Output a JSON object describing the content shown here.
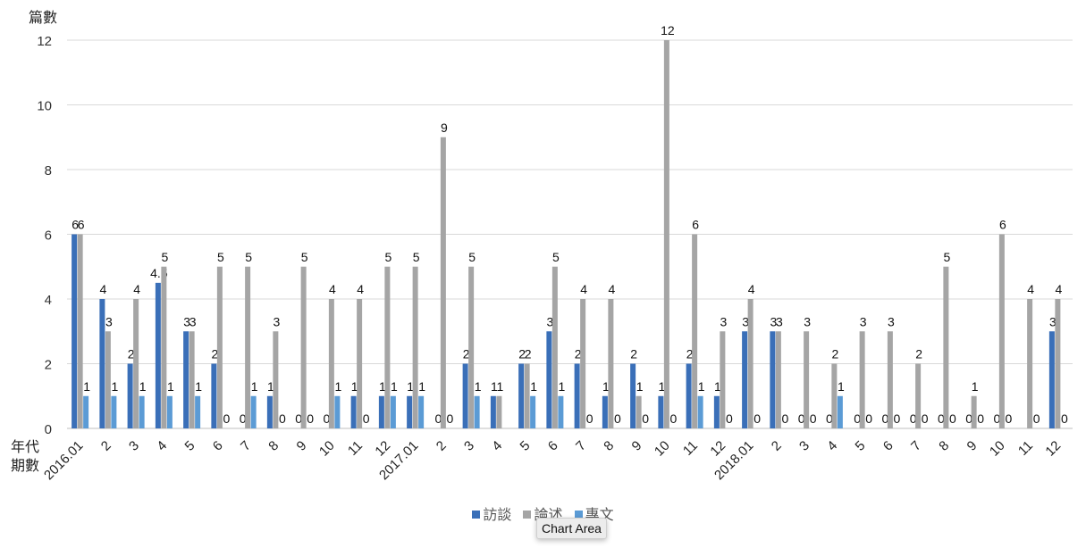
{
  "chart_data": {
    "type": "bar",
    "title": "",
    "ylabel": "篇數",
    "xlabel": "年代\n期數",
    "ylim": [
      0,
      12
    ],
    "yticks": [
      0,
      2,
      4,
      6,
      8,
      10,
      12
    ],
    "grid": true,
    "legend_position": "bottom",
    "categories": [
      "2016.01",
      "2",
      "3",
      "4",
      "5",
      "6",
      "7",
      "8",
      "9",
      "10",
      "11",
      "12",
      "2017.01",
      "2",
      "3",
      "4",
      "5",
      "6",
      "7",
      "8",
      "9",
      "10",
      "11",
      "12",
      "2018.01",
      "2",
      "3",
      "4",
      "5",
      "6",
      "7",
      "8",
      "9",
      "10",
      "11",
      "12"
    ],
    "series": [
      {
        "name": "訪談",
        "color": "#3a6fb8",
        "values": [
          6,
          4,
          2,
          4.5,
          3,
          2,
          0,
          1,
          0,
          0,
          1,
          1,
          1,
          0,
          2,
          1,
          2,
          3,
          2,
          1,
          2,
          1,
          2,
          1,
          3,
          3,
          0,
          0,
          0,
          0,
          0,
          0,
          0,
          0,
          null,
          3
        ]
      },
      {
        "name": "論述",
        "color": "#a5a5a5",
        "values": [
          6,
          3,
          4,
          5,
          3,
          5,
          5,
          3,
          5,
          4,
          4,
          5,
          5,
          9,
          5,
          1,
          2,
          5,
          4,
          4,
          1,
          12,
          6,
          3,
          4,
          3,
          3,
          2,
          3,
          3,
          2,
          5,
          1,
          6,
          4,
          4
        ]
      },
      {
        "name": "專文",
        "color": "#5b9bd5",
        "values": [
          1,
          1,
          1,
          1,
          1,
          0,
          1,
          0,
          0,
          1,
          0,
          1,
          1,
          0,
          1,
          null,
          1,
          1,
          0,
          0,
          0,
          0,
          1,
          0,
          0,
          0,
          0,
          1,
          0,
          0,
          0,
          0,
          0,
          0,
          0,
          0
        ]
      }
    ]
  },
  "axis": {
    "y_title": "篇數",
    "x_title_line1": "年代",
    "x_title_line2": "期數"
  },
  "legend": {
    "items": [
      {
        "label": "訪談",
        "color": "#3a6fb8"
      },
      {
        "label": "論述",
        "color": "#a5a5a5"
      },
      {
        "label": "專文",
        "color": "#5b9bd5"
      }
    ]
  },
  "tooltip": {
    "text": "Chart Area"
  }
}
